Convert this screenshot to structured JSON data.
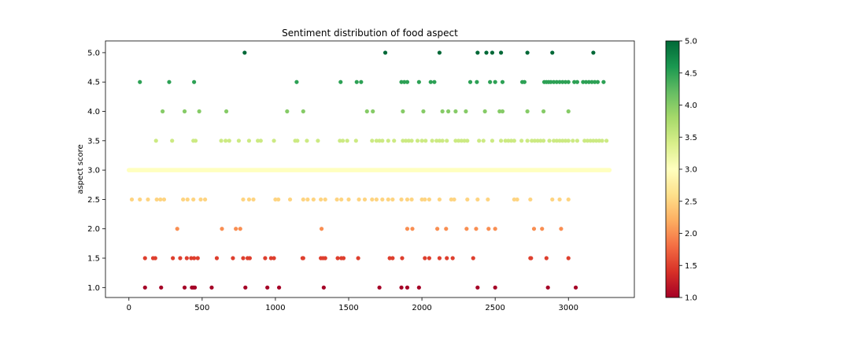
{
  "chart_data": {
    "type": "scatter",
    "title": "Sentiment distribution of food aspect",
    "xlabel": "",
    "ylabel": "aspect score",
    "xlim": [
      -160,
      3450
    ],
    "ylim": [
      0.83,
      5.2
    ],
    "xticks": [
      0,
      500,
      1000,
      1500,
      2000,
      2500,
      3000
    ],
    "yticks": [
      1.0,
      1.5,
      2.0,
      2.5,
      3.0,
      3.5,
      4.0,
      4.5,
      5.0
    ],
    "grid": false,
    "legend": "none",
    "colorbar": {
      "label": "",
      "range": [
        1.0,
        5.0
      ],
      "ticks": [
        1.0,
        1.5,
        2.0,
        2.5,
        3.0,
        3.5,
        4.0,
        4.5,
        5.0
      ],
      "colormap": "RdYlGn",
      "stops": [
        "#a50026",
        "#d73027",
        "#f46d43",
        "#fdae61",
        "#fee08b",
        "#ffffbf",
        "#d9ef8b",
        "#a6d96a",
        "#66bd63",
        "#1a9850",
        "#006837"
      ]
    },
    "series": [
      {
        "values": [
          [
            790,
            5
          ],
          [
            1750,
            5
          ],
          [
            2120,
            5
          ],
          [
            2380,
            5
          ],
          [
            2440,
            5
          ],
          [
            2480,
            5
          ],
          [
            2540,
            5
          ],
          [
            2720,
            5
          ],
          [
            2890,
            5
          ],
          [
            3170,
            5
          ],
          [
            75,
            4.5
          ],
          [
            275,
            4.5
          ],
          [
            445,
            4.5
          ],
          [
            1145,
            4.5
          ],
          [
            1445,
            4.5
          ],
          [
            1555,
            4.5
          ],
          [
            1585,
            4.5
          ],
          [
            1860,
            4.5
          ],
          [
            1880,
            4.5
          ],
          [
            1900,
            4.5
          ],
          [
            1980,
            4.5
          ],
          [
            2060,
            4.5
          ],
          [
            2085,
            4.5
          ],
          [
            2330,
            4.5
          ],
          [
            2375,
            4.5
          ],
          [
            2465,
            4.5
          ],
          [
            2500,
            4.5
          ],
          [
            2550,
            4.5
          ],
          [
            2685,
            4.5
          ],
          [
            2700,
            4.5
          ],
          [
            2835,
            4.5
          ],
          [
            2850,
            4.5
          ],
          [
            2865,
            4.5
          ],
          [
            2880,
            4.5
          ],
          [
            2900,
            4.5
          ],
          [
            2920,
            4.5
          ],
          [
            2940,
            4.5
          ],
          [
            2960,
            4.5
          ],
          [
            2980,
            4.5
          ],
          [
            3000,
            4.5
          ],
          [
            3040,
            4.5
          ],
          [
            3060,
            4.5
          ],
          [
            3100,
            4.5
          ],
          [
            3120,
            4.5
          ],
          [
            3140,
            4.5
          ],
          [
            3160,
            4.5
          ],
          [
            3180,
            4.5
          ],
          [
            3200,
            4.5
          ],
          [
            3240,
            4.5
          ],
          [
            230,
            4
          ],
          [
            380,
            4
          ],
          [
            480,
            4
          ],
          [
            665,
            4
          ],
          [
            1080,
            4
          ],
          [
            1190,
            4
          ],
          [
            1625,
            4
          ],
          [
            1665,
            4
          ],
          [
            1870,
            4
          ],
          [
            2010,
            4
          ],
          [
            2140,
            4
          ],
          [
            2180,
            4
          ],
          [
            2230,
            4
          ],
          [
            2300,
            4
          ],
          [
            2430,
            4
          ],
          [
            2530,
            4
          ],
          [
            2550,
            4
          ],
          [
            2720,
            4
          ],
          [
            2830,
            4
          ],
          [
            3000,
            4
          ],
          [
            185,
            3.5
          ],
          [
            295,
            3.5
          ],
          [
            440,
            3.5
          ],
          [
            455,
            3.5
          ],
          [
            630,
            3.5
          ],
          [
            660,
            3.5
          ],
          [
            685,
            3.5
          ],
          [
            750,
            3.5
          ],
          [
            820,
            3.5
          ],
          [
            880,
            3.5
          ],
          [
            900,
            3.5
          ],
          [
            990,
            3.5
          ],
          [
            1135,
            3.5
          ],
          [
            1150,
            3.5
          ],
          [
            1215,
            3.5
          ],
          [
            1290,
            3.5
          ],
          [
            1440,
            3.5
          ],
          [
            1460,
            3.5
          ],
          [
            1490,
            3.5
          ],
          [
            1550,
            3.5
          ],
          [
            1660,
            3.5
          ],
          [
            1690,
            3.5
          ],
          [
            1710,
            3.5
          ],
          [
            1730,
            3.5
          ],
          [
            1770,
            3.5
          ],
          [
            1810,
            3.5
          ],
          [
            1870,
            3.5
          ],
          [
            1890,
            3.5
          ],
          [
            1910,
            3.5
          ],
          [
            1930,
            3.5
          ],
          [
            1970,
            3.5
          ],
          [
            2000,
            3.5
          ],
          [
            2025,
            3.5
          ],
          [
            2070,
            3.5
          ],
          [
            2100,
            3.5
          ],
          [
            2120,
            3.5
          ],
          [
            2140,
            3.5
          ],
          [
            2170,
            3.5
          ],
          [
            2230,
            3.5
          ],
          [
            2250,
            3.5
          ],
          [
            2270,
            3.5
          ],
          [
            2290,
            3.5
          ],
          [
            2310,
            3.5
          ],
          [
            2390,
            3.5
          ],
          [
            2420,
            3.5
          ],
          [
            2480,
            3.5
          ],
          [
            2540,
            3.5
          ],
          [
            2570,
            3.5
          ],
          [
            2590,
            3.5
          ],
          [
            2610,
            3.5
          ],
          [
            2630,
            3.5
          ],
          [
            2680,
            3.5
          ],
          [
            2720,
            3.5
          ],
          [
            2750,
            3.5
          ],
          [
            2770,
            3.5
          ],
          [
            2790,
            3.5
          ],
          [
            2810,
            3.5
          ],
          [
            2830,
            3.5
          ],
          [
            2870,
            3.5
          ],
          [
            2900,
            3.5
          ],
          [
            2920,
            3.5
          ],
          [
            2940,
            3.5
          ],
          [
            2960,
            3.5
          ],
          [
            2980,
            3.5
          ],
          [
            3000,
            3.5
          ],
          [
            3030,
            3.5
          ],
          [
            3060,
            3.5
          ],
          [
            3110,
            3.5
          ],
          [
            3130,
            3.5
          ],
          [
            3150,
            3.5
          ],
          [
            3170,
            3.5
          ],
          [
            3190,
            3.5
          ],
          [
            3210,
            3.5
          ],
          [
            3230,
            3.5
          ],
          [
            3260,
            3.5
          ],
          [
            0,
            3
          ],
          [
            3280,
            3
          ],
          [
            20,
            2.5
          ],
          [
            75,
            2.5
          ],
          [
            130,
            2.5
          ],
          [
            190,
            2.5
          ],
          [
            215,
            2.5
          ],
          [
            240,
            2.5
          ],
          [
            370,
            2.5
          ],
          [
            400,
            2.5
          ],
          [
            440,
            2.5
          ],
          [
            490,
            2.5
          ],
          [
            520,
            2.5
          ],
          [
            780,
            2.5
          ],
          [
            820,
            2.5
          ],
          [
            850,
            2.5
          ],
          [
            1000,
            2.5
          ],
          [
            1020,
            2.5
          ],
          [
            1100,
            2.5
          ],
          [
            1190,
            2.5
          ],
          [
            1220,
            2.5
          ],
          [
            1260,
            2.5
          ],
          [
            1310,
            2.5
          ],
          [
            1340,
            2.5
          ],
          [
            1420,
            2.5
          ],
          [
            1450,
            2.5
          ],
          [
            1500,
            2.5
          ],
          [
            1570,
            2.5
          ],
          [
            1610,
            2.5
          ],
          [
            1660,
            2.5
          ],
          [
            1690,
            2.5
          ],
          [
            1730,
            2.5
          ],
          [
            1770,
            2.5
          ],
          [
            1800,
            2.5
          ],
          [
            1860,
            2.5
          ],
          [
            1900,
            2.5
          ],
          [
            1930,
            2.5
          ],
          [
            2000,
            2.5
          ],
          [
            2020,
            2.5
          ],
          [
            2050,
            2.5
          ],
          [
            2120,
            2.5
          ],
          [
            2200,
            2.5
          ],
          [
            2220,
            2.5
          ],
          [
            2310,
            2.5
          ],
          [
            2380,
            2.5
          ],
          [
            2450,
            2.5
          ],
          [
            2630,
            2.5
          ],
          [
            2650,
            2.5
          ],
          [
            2740,
            2.5
          ],
          [
            2890,
            2.5
          ],
          [
            2940,
            2.5
          ],
          [
            3000,
            2.5
          ],
          [
            330,
            2
          ],
          [
            635,
            2
          ],
          [
            730,
            2
          ],
          [
            760,
            2
          ],
          [
            1315,
            2
          ],
          [
            1900,
            2
          ],
          [
            1935,
            2
          ],
          [
            2105,
            2
          ],
          [
            2165,
            2
          ],
          [
            2305,
            2
          ],
          [
            2370,
            2
          ],
          [
            2455,
            2
          ],
          [
            2500,
            2
          ],
          [
            2765,
            2
          ],
          [
            2820,
            2
          ],
          [
            2950,
            2
          ],
          [
            110,
            1.5
          ],
          [
            165,
            1.5
          ],
          [
            180,
            1.5
          ],
          [
            300,
            1.5
          ],
          [
            350,
            1.5
          ],
          [
            395,
            1.5
          ],
          [
            425,
            1.5
          ],
          [
            445,
            1.5
          ],
          [
            470,
            1.5
          ],
          [
            600,
            1.5
          ],
          [
            710,
            1.5
          ],
          [
            780,
            1.5
          ],
          [
            810,
            1.5
          ],
          [
            825,
            1.5
          ],
          [
            930,
            1.5
          ],
          [
            970,
            1.5
          ],
          [
            990,
            1.5
          ],
          [
            1185,
            1.5
          ],
          [
            1190,
            1.5
          ],
          [
            1310,
            1.5
          ],
          [
            1325,
            1.5
          ],
          [
            1340,
            1.5
          ],
          [
            1425,
            1.5
          ],
          [
            1450,
            1.5
          ],
          [
            1465,
            1.5
          ],
          [
            1565,
            1.5
          ],
          [
            1780,
            1.5
          ],
          [
            1800,
            1.5
          ],
          [
            1865,
            1.5
          ],
          [
            2020,
            1.5
          ],
          [
            2050,
            1.5
          ],
          [
            2120,
            1.5
          ],
          [
            2170,
            1.5
          ],
          [
            2210,
            1.5
          ],
          [
            2350,
            1.5
          ],
          [
            2740,
            1.5
          ],
          [
            2745,
            1.5
          ],
          [
            2850,
            1.5
          ],
          [
            3000,
            1.5
          ],
          [
            110,
            1
          ],
          [
            220,
            1
          ],
          [
            380,
            1
          ],
          [
            430,
            1
          ],
          [
            440,
            1
          ],
          [
            450,
            1
          ],
          [
            565,
            1
          ],
          [
            795,
            1
          ],
          [
            945,
            1
          ],
          [
            1025,
            1
          ],
          [
            1330,
            1
          ],
          [
            1710,
            1
          ],
          [
            1860,
            1
          ],
          [
            1900,
            1
          ],
          [
            1980,
            1
          ],
          [
            2380,
            1
          ],
          [
            2500,
            1
          ],
          [
            2860,
            1
          ],
          [
            3050,
            1
          ]
        ]
      }
    ]
  }
}
